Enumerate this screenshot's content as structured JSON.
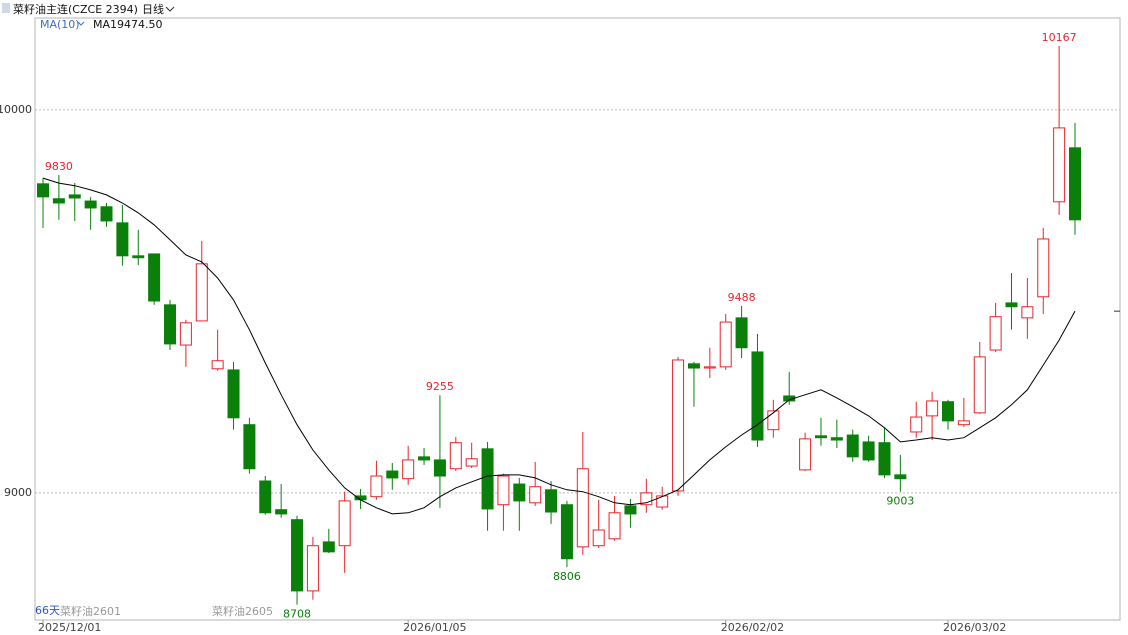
{
  "chart_data": {
    "type": "candlestick",
    "title": "菜籽油主连(CZCE 2394)",
    "period": "日线",
    "categories": [
      "2025/12/01",
      null,
      null,
      null,
      null,
      null,
      null,
      null,
      null,
      null,
      null,
      null,
      null,
      null,
      null,
      null,
      null,
      null,
      null,
      null,
      null,
      null,
      null,
      "2026/01/05",
      null,
      null,
      null,
      null,
      null,
      null,
      null,
      null,
      null,
      null,
      null,
      null,
      null,
      null,
      null,
      null,
      null,
      null,
      null,
      "2026/02/02",
      null,
      null,
      null,
      null,
      null,
      null,
      null,
      null,
      null,
      null,
      null,
      null,
      null,
      "2026/03/02",
      null,
      null,
      null,
      null,
      null,
      null,
      null,
      null
    ],
    "open": [
      9807,
      9768,
      9778,
      9762,
      9747,
      9705,
      9619,
      9624,
      9491,
      9386,
      9449,
      9324,
      9321,
      9178,
      9031,
      8956,
      8930,
      8744,
      8872,
      8862,
      8992,
      8990,
      9057,
      9037,
      9094,
      9086,
      9063,
      9070,
      9115,
      8969,
      9023,
      8974,
      9008,
      8969,
      8859,
      8862,
      8880,
      8966,
      8969,
      8963,
      9005,
      9337,
      9326,
      9329,
      9457,
      9368,
      9165,
      9253,
      9060,
      9149,
      9144,
      9151,
      9133,
      9131,
      9047,
      9159,
      9201,
      9238,
      9178,
      9209,
      9373,
      9496,
      9457,
      9512,
      9760,
      9901
    ],
    "high": [
      9822,
      9830,
      9809,
      9773,
      9757,
      9752,
      9687,
      9624,
      9504,
      9452,
      9658,
      9426,
      9342,
      9196,
      9044,
      9023,
      8940,
      8885,
      8906,
      9003,
      9010,
      9084,
      9078,
      9123,
      9117,
      9255,
      9146,
      9131,
      9133,
      9050,
      9039,
      9081,
      9031,
      8979,
      9159,
      8982,
      8992,
      8984,
      9037,
      9016,
      9355,
      9342,
      9379,
      9467,
      9488,
      9415,
      9243,
      9316,
      9157,
      9196,
      9191,
      9165,
      9149,
      9170,
      9099,
      9238,
      9264,
      9243,
      9248,
      9394,
      9496,
      9574,
      9561,
      9692,
      10167,
      9966
    ],
    "low": [
      9692,
      9713,
      9710,
      9687,
      9695,
      9593,
      9595,
      9491,
      9373,
      9329,
      9449,
      9319,
      9165,
      9050,
      8943,
      8935,
      8708,
      8721,
      8843,
      8791,
      8958,
      8982,
      9008,
      9021,
      9073,
      8961,
      9057,
      9065,
      8901,
      8901,
      8901,
      8966,
      8919,
      8806,
      8838,
      8856,
      8875,
      8909,
      8948,
      8956,
      8992,
      9225,
      9300,
      9321,
      9352,
      9120,
      9144,
      9230,
      9057,
      9123,
      9117,
      9081,
      9081,
      9039,
      9003,
      9144,
      9138,
      9165,
      9172,
      9206,
      9368,
      9426,
      9402,
      9467,
      9726,
      9674
    ],
    "close": [
      9773,
      9757,
      9770,
      9744,
      9710,
      9619,
      9614,
      9501,
      9389,
      9444,
      9598,
      9345,
      9196,
      9063,
      8948,
      8945,
      8744,
      8862,
      8846,
      8979,
      8982,
      9044,
      9039,
      9086,
      9086,
      9044,
      9131,
      9089,
      8958,
      9044,
      8979,
      9016,
      8950,
      8828,
      9063,
      8903,
      8948,
      8945,
      9000,
      8992,
      9347,
      9326,
      9329,
      9446,
      9379,
      9138,
      9214,
      9240,
      9141,
      9144,
      9138,
      9094,
      9086,
      9047,
      9037,
      9198,
      9240,
      9188,
      9188,
      9355,
      9460,
      9486,
      9486,
      9663,
      9953,
      9713
    ],
    "up_color": "#e8242c",
    "down_color": "#0a7f0a",
    "ma": {
      "name": "MA(10)",
      "color": "#000000",
      "values": [
        9822,
        9809,
        9802,
        9791,
        9778,
        9757,
        9731,
        9700,
        9661,
        9621,
        9603,
        9561,
        9504,
        9426,
        9339,
        9256,
        9178,
        9112,
        9060,
        9013,
        8982,
        8961,
        8945,
        8948,
        8961,
        8990,
        9013,
        9029,
        9044,
        9047,
        9047,
        9039,
        9021,
        9008,
        9003,
        8990,
        8974,
        8969,
        8974,
        8990,
        9008,
        9047,
        9086,
        9120,
        9151,
        9178,
        9209,
        9243,
        9256,
        9269,
        9248,
        9225,
        9201,
        9170,
        9133,
        9138,
        9144,
        9138,
        9144,
        9170,
        9196,
        9230,
        9269,
        9334,
        9399,
        9474.5
      ],
      "readout": {
        "name": "MA1",
        "value": 9474.5,
        "label": "9474.50"
      }
    },
    "ylim": [
      8668,
      10240
    ],
    "yticks": [
      9000,
      10000
    ],
    "grid": true,
    "footer": {
      "days": "66天",
      "contracts": [
        "菜籽油2601",
        "菜籽油2605"
      ]
    }
  }
}
